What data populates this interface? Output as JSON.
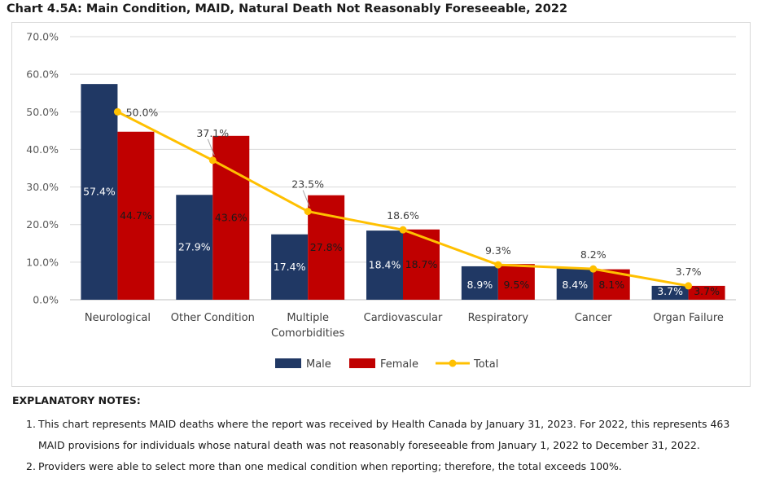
{
  "title": "Chart 4.5A: Main Condition, MAID, Natural Death Not Reasonably Foreseeable, 2022",
  "chart_data": {
    "type": "bar",
    "categories": [
      [
        "Neurological"
      ],
      [
        "Other Condition"
      ],
      [
        "Multiple",
        "Comorbidities"
      ],
      [
        "Cardiovascular"
      ],
      [
        "Respiratory"
      ],
      [
        "Cancer"
      ],
      [
        "Organ Failure"
      ]
    ],
    "series": [
      {
        "name": "Male",
        "kind": "bar",
        "color": "#203864",
        "values": [
          57.4,
          27.9,
          17.4,
          18.4,
          8.9,
          8.4,
          3.7
        ],
        "labels": [
          "57.4%",
          "27.9%",
          "17.4%",
          "18.4%",
          "8.9%",
          "8.4%",
          "3.7%"
        ]
      },
      {
        "name": "Female",
        "kind": "bar",
        "color": "#c00000",
        "values": [
          44.7,
          43.6,
          27.8,
          18.7,
          9.5,
          8.1,
          3.7
        ],
        "labels": [
          "44.7%",
          "43.6%",
          "27.8%",
          "18.7%",
          "9.5%",
          "8.1%",
          "3.7%"
        ]
      },
      {
        "name": "Total",
        "kind": "line",
        "color": "#ffc000",
        "values": [
          50.0,
          37.1,
          23.5,
          18.6,
          9.3,
          8.2,
          3.7
        ],
        "labels": [
          "50.0%",
          "37.1%",
          "23.5%",
          "18.6%",
          "9.3%",
          "8.2%",
          "3.7%"
        ]
      }
    ],
    "ylim": [
      0,
      70
    ],
    "yticks": [
      "0.0%",
      "10.0%",
      "20.0%",
      "30.0%",
      "40.0%",
      "50.0%",
      "60.0%",
      "70.0%"
    ],
    "grid": true,
    "legend": "bottom"
  },
  "notes": {
    "heading": "EXPLANATORY NOTES:",
    "items": [
      {
        "num": "1.",
        "text": "This chart represents MAID deaths where the report was received by Health Canada by January 31, 2023. For 2022, this represents 463 MAID provisions for individuals whose natural death was not reasonably foreseeable from January 1, 2022 to December 31, 2022."
      },
      {
        "num": "2.",
        "text": "Providers were able to select more than one medical condition when reporting; therefore, the total exceeds 100%."
      }
    ]
  }
}
